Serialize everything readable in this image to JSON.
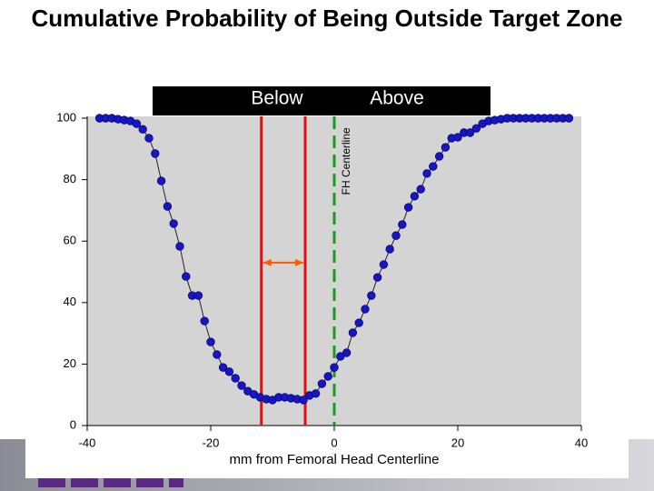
{
  "chart_data": {
    "type": "line",
    "title": "Cumulative Probability of Being Outside Target Zone",
    "banner": [
      "Below",
      "Above"
    ],
    "xlabel": "mm from Femoral Head Centerline",
    "x": [
      -38,
      -37,
      -36,
      -35,
      -34,
      -33,
      -32,
      -31,
      -30,
      -29,
      -28,
      -27,
      -26,
      -25,
      -24,
      -23,
      -22,
      -21,
      -20,
      -19,
      -18,
      -17,
      -16,
      -15,
      -14,
      -13,
      -12,
      -11,
      -10,
      -9,
      -8,
      -7,
      -6,
      -5,
      -4,
      -3,
      -2,
      -1,
      0,
      1,
      2,
      3,
      4,
      5,
      6,
      7,
      8,
      9,
      10,
      11,
      12,
      13,
      14,
      15,
      16,
      17,
      18,
      19,
      20,
      21,
      22,
      23,
      24,
      25,
      26,
      27,
      28,
      29,
      30,
      31,
      32,
      33,
      34,
      35,
      36,
      37,
      38
    ],
    "series": [
      {
        "color": "#1616c8",
        "values": [
          100,
          100,
          100,
          99.7,
          99.4,
          99.1,
          98.2,
          96.4,
          93.5,
          88.5,
          79.6,
          71.3,
          65.7,
          58.3,
          48.5,
          42.3,
          42.3,
          34,
          27.2,
          23.1,
          18.9,
          17.5,
          15.4,
          13,
          11.2,
          10.1,
          9.2,
          8.6,
          8.3,
          9.2,
          9.2,
          8.9,
          8.6,
          8.3,
          9.8,
          10.4,
          13.6,
          16,
          18.9,
          22.5,
          23.7,
          30.2,
          33.4,
          37.9,
          42.3,
          48.2,
          52.4,
          57.4,
          61.8,
          65.4,
          71,
          74.6,
          76.9,
          82,
          84.3,
          87.6,
          90.5,
          93.5,
          93.8,
          95.3,
          95.3,
          96.7,
          98.2,
          99.1,
          99.4,
          99.7,
          100,
          100,
          100,
          100,
          100,
          100,
          100,
          100,
          100,
          100,
          100
        ]
      }
    ],
    "xlim": [
      -40,
      40
    ],
    "ylim": [
      0,
      100
    ],
    "xticks": [
      -40,
      -20,
      0,
      20,
      40
    ],
    "yticks": [
      0,
      20,
      40,
      60,
      80,
      100
    ],
    "vlines": [
      {
        "x": -11.8,
        "color": "#e01010"
      },
      {
        "x": -4.7,
        "color": "#e01010"
      },
      {
        "x": 0,
        "color": "#1e9a1e",
        "dashed": true
      }
    ],
    "arrow": {
      "x1": -11.8,
      "x2": -4.7,
      "y": 53,
      "color": "#ff5a00"
    },
    "annotations": [
      {
        "text": "FH Centerline",
        "x": 2,
        "y": 86
      }
    ]
  }
}
